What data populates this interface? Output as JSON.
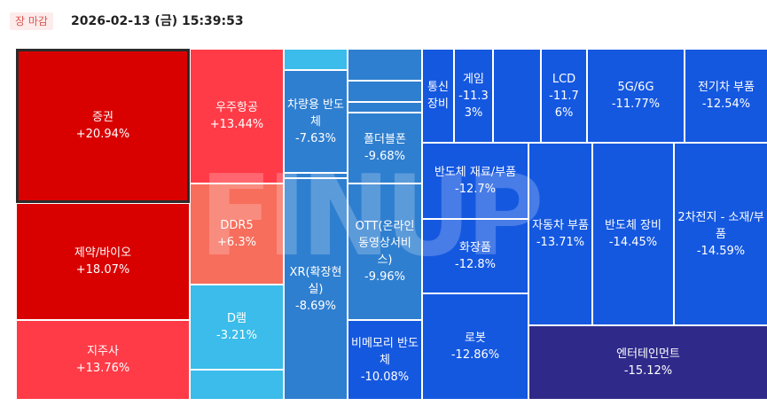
{
  "header": {
    "badge": "장 마감",
    "timestamp": "2026-02-13 (금) 15:39:53"
  },
  "watermark": "FINUP",
  "colors": {
    "up_strong": "#d90000",
    "up_mid": "#ff3b47",
    "up_light": "#f76e5c",
    "down_light": "#3bbcea",
    "down_mid": "#2f7fd0",
    "down_strong": "#1558e0",
    "down_deep": "#2f2a8a"
  },
  "chart_data": {
    "type": "treemap",
    "tiles": [
      {
        "name": "증권",
        "change": "+20.94%",
        "value": 20.94
      },
      {
        "name": "제약/바이오",
        "change": "+18.07%",
        "value": 18.07
      },
      {
        "name": "지주사",
        "change": "+13.76%",
        "value": 13.76
      },
      {
        "name": "우주항공",
        "change": "+13.44%",
        "value": 13.44
      },
      {
        "name": "DDR5",
        "change": "+6.3%",
        "value": 6.3
      },
      {
        "name": "D램",
        "change": "-3.21%",
        "value": -3.21
      },
      {
        "name": "차량용 반도체",
        "change": "-7.63%",
        "value": -7.63
      },
      {
        "name": "XR(확장현실)",
        "change": "-8.69%",
        "value": -8.69
      },
      {
        "name": "폴더블폰",
        "change": "-9.68%",
        "value": -9.68
      },
      {
        "name": "OTT(온라인동영상서비스)",
        "change": "-9.96%",
        "value": -9.96
      },
      {
        "name": "비메모리 반도체",
        "change": "-10.08%",
        "value": -10.08
      },
      {
        "name": "통신장비",
        "change": "",
        "value": null
      },
      {
        "name": "게임",
        "change": "-11.33%",
        "value": -11.33
      },
      {
        "name": "LCD",
        "change": "-11.76%",
        "value": -11.76
      },
      {
        "name": "5G/6G",
        "change": "-11.77%",
        "value": -11.77
      },
      {
        "name": "전기차 부품",
        "change": "-12.54%",
        "value": -12.54
      },
      {
        "name": "반도체 재료/부품",
        "change": "-12.7%",
        "value": -12.7
      },
      {
        "name": "화장품",
        "change": "-12.8%",
        "value": -12.8
      },
      {
        "name": "로봇",
        "change": "-12.86%",
        "value": -12.86
      },
      {
        "name": "자동차 부품",
        "change": "-13.71%",
        "value": -13.71
      },
      {
        "name": "반도체 장비",
        "change": "-14.45%",
        "value": -14.45
      },
      {
        "name": "2차전지 - 소재/부품",
        "change": "-14.59%",
        "value": -14.59
      },
      {
        "name": "엔터테인먼트",
        "change": "-15.12%",
        "value": -15.12
      }
    ]
  }
}
